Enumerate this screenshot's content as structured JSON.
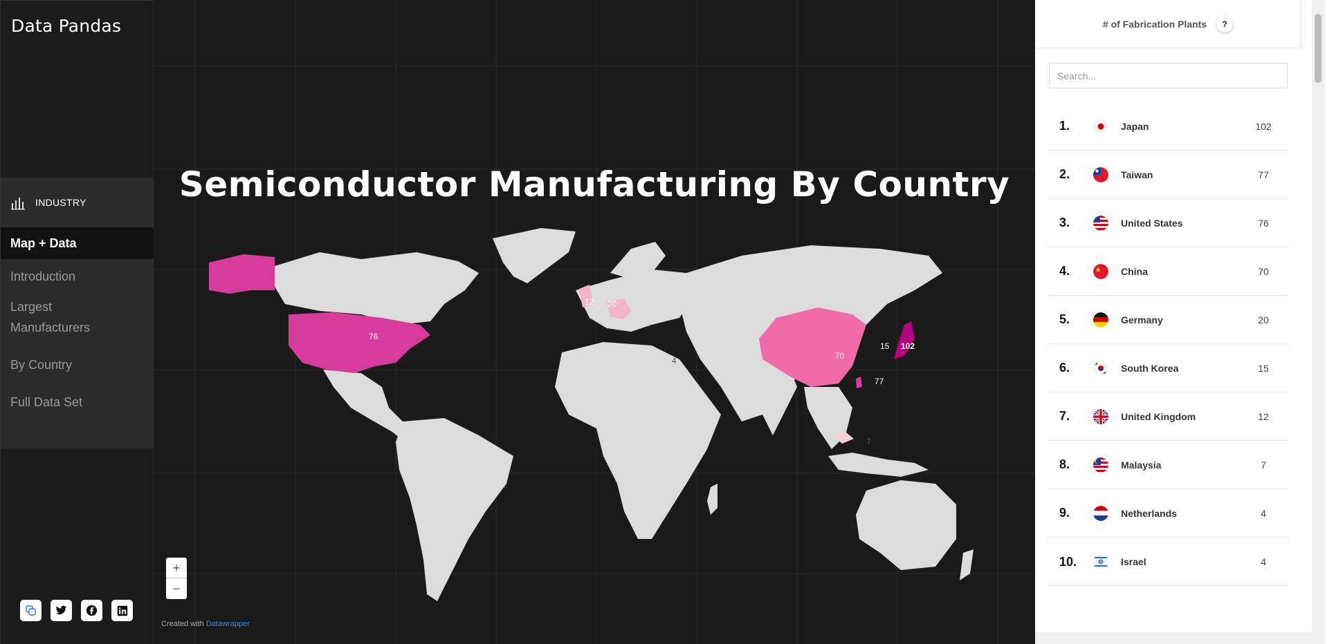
{
  "sidebar": {
    "brand": "Data Pandas",
    "section": "INDUSTRY",
    "items": [
      {
        "label": "Map + Data",
        "active": true
      },
      {
        "label": "Introduction"
      },
      {
        "label": "Largest Manufacturers"
      },
      {
        "label": "By Country"
      },
      {
        "label": "Full Data Set"
      }
    ],
    "socials": [
      "copy-link-icon",
      "twitter-icon",
      "facebook-icon",
      "linkedin-icon"
    ]
  },
  "map": {
    "title": "Semiconductor Manufacturing By Country",
    "zoom_in": "+",
    "zoom_out": "−",
    "credit_prefix": "Created with",
    "credit_link": "Datawrapper",
    "labels": [
      "76",
      "12",
      "20",
      "4",
      "70",
      "15",
      "102",
      "77",
      "7"
    ],
    "colors": {
      "land": "#dcdcdc",
      "high": "#b5007f",
      "mid": "#d73c9c",
      "low": "#f06aa8",
      "faint": "#f4b3c8"
    }
  },
  "panel": {
    "header": "# of Fabrication Plants",
    "help": "?",
    "search_placeholder": "Search...",
    "rows": [
      {
        "rank": "1.",
        "name": "Japan",
        "value": "102"
      },
      {
        "rank": "2.",
        "name": "Taiwan",
        "value": "77"
      },
      {
        "rank": "3.",
        "name": "United States",
        "value": "76"
      },
      {
        "rank": "4.",
        "name": "China",
        "value": "70"
      },
      {
        "rank": "5.",
        "name": "Germany",
        "value": "20"
      },
      {
        "rank": "6.",
        "name": "South Korea",
        "value": "15"
      },
      {
        "rank": "7.",
        "name": "United Kingdom",
        "value": "12"
      },
      {
        "rank": "8.",
        "name": "Malaysia",
        "value": "7"
      },
      {
        "rank": "9.",
        "name": "Netherlands",
        "value": "4"
      },
      {
        "rank": "10.",
        "name": "Israel",
        "value": "4"
      }
    ]
  }
}
